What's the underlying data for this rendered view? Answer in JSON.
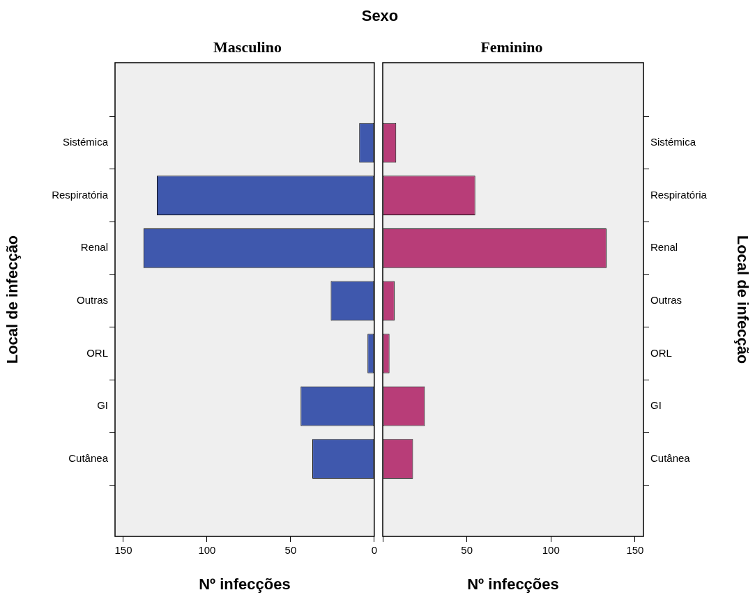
{
  "chart_data": [
    {
      "type": "bar",
      "orientation": "horizontal",
      "title": "Sexo",
      "subtitle": "Masculino",
      "categories": [
        "Sistémica",
        "Respiratória",
        "Renal",
        "Outras",
        "ORL",
        "GI",
        "Cutânea"
      ],
      "series": [
        {
          "color": "#3f58ad",
          "values": [
            9,
            130,
            138,
            26,
            4,
            44,
            37
          ]
        }
      ],
      "xlim": [
        155,
        0
      ],
      "xticks": [
        150,
        100,
        50,
        0
      ],
      "xlabel": "Nº infecções",
      "ylabel": "Local de infecção",
      "grid": false,
      "legend": false
    },
    {
      "type": "bar",
      "orientation": "horizontal",
      "subtitle": "Feminino",
      "categories": [
        "Sistémica",
        "Respiratória",
        "Renal",
        "Outras",
        "ORL",
        "GI",
        "Cutânea"
      ],
      "series": [
        {
          "color": "#b83d78",
          "values": [
            8,
            55,
            133,
            7,
            4,
            25,
            18
          ]
        }
      ],
      "xlim": [
        0,
        155
      ],
      "xticks": [
        {
          "value": 0,
          "label": null
        },
        50,
        100,
        150
      ],
      "xlabel": "Nº infecções",
      "ylabel": "Local de infecção",
      "grid": false,
      "legend": false
    }
  ]
}
